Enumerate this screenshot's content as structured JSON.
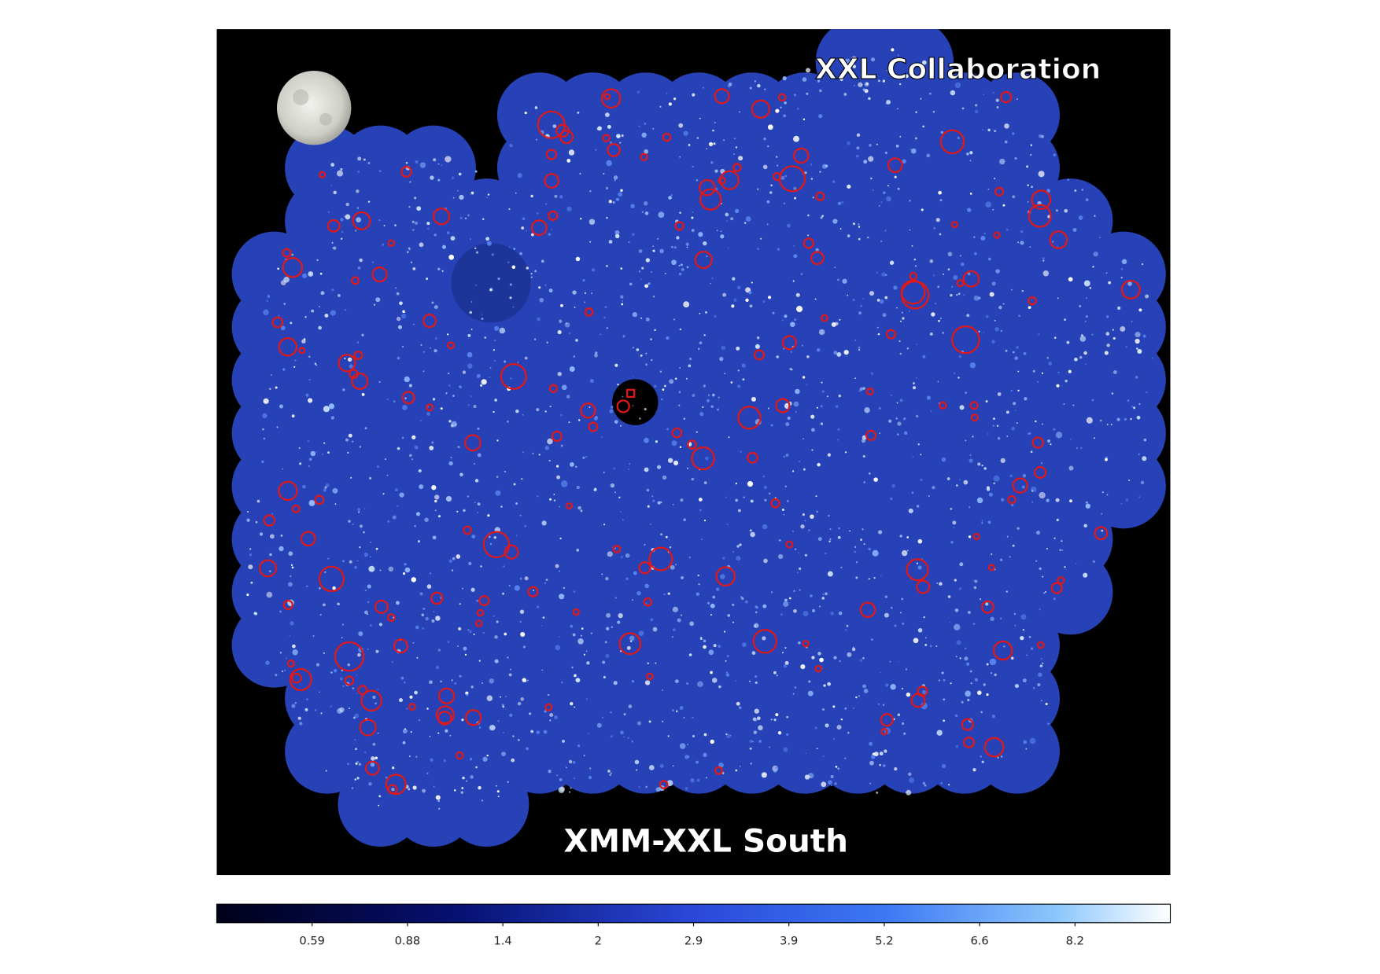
{
  "image": {
    "credit": "XXL Collaboration",
    "caption": "XMM-XXL South"
  },
  "colorbar": {
    "ticks": [
      0.59,
      0.88,
      1.4,
      2,
      2.9,
      3.9,
      5.2,
      6.6,
      8.2
    ]
  }
}
